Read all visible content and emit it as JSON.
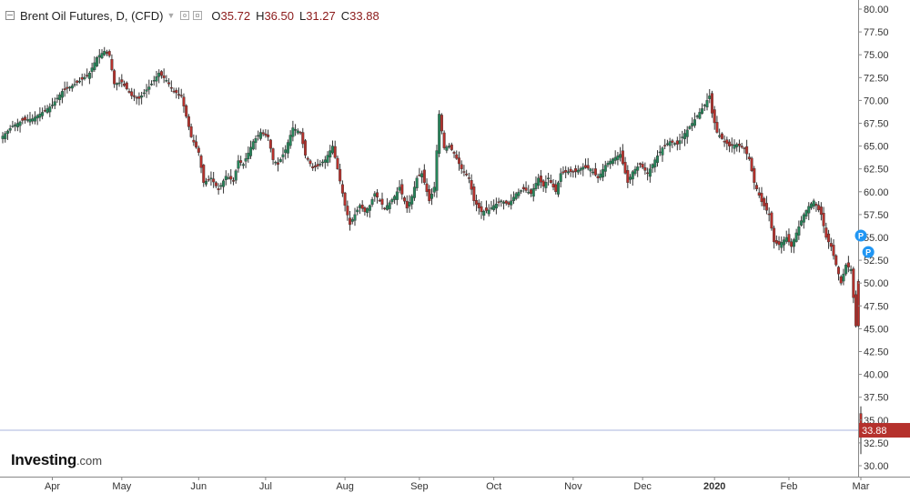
{
  "legend": {
    "title": "Brent Oil Futures, D, (CFD)",
    "open_label": "O",
    "open": "35.72",
    "high_label": "H",
    "high": "36.50",
    "low_label": "L",
    "low": "31.27",
    "close_label": "C",
    "close": "33.88"
  },
  "logo": {
    "main": "Investing",
    "sub": ".com"
  },
  "colors": {
    "up": "#26855a",
    "down": "#b5312c",
    "axis_text": "#333333",
    "last_price_line": "#aab4dc",
    "marker": "#2196f3"
  },
  "icons": {
    "collapse": "minus-square-icon",
    "caret": "caret-down-icon",
    "settings": "gear-icon",
    "close": "close-icon",
    "marker": "p-marker-icon"
  },
  "chart_data": {
    "type": "candlestick",
    "ylim": [
      29,
      81
    ],
    "y_ticks": [
      "30.00",
      "32.50",
      "35.00",
      "37.50",
      "40.00",
      "42.50",
      "45.00",
      "47.50",
      "50.00",
      "52.50",
      "55.00",
      "57.50",
      "60.00",
      "62.50",
      "65.00",
      "67.50",
      "70.00",
      "72.50",
      "75.00",
      "77.50",
      "80.00"
    ],
    "x_ticks": [
      {
        "label": "Apr",
        "day": 20
      },
      {
        "label": "May",
        "day": 48
      },
      {
        "label": "Jun",
        "day": 79
      },
      {
        "label": "Jul",
        "day": 106
      },
      {
        "label": "Aug",
        "day": 138
      },
      {
        "label": "Sep",
        "day": 168
      },
      {
        "label": "Oct",
        "day": 198
      },
      {
        "label": "Nov",
        "day": 230
      },
      {
        "label": "Dec",
        "day": 258
      },
      {
        "label": "2020",
        "day": 287
      },
      {
        "label": "Feb",
        "day": 317
      },
      {
        "label": "Mar",
        "day": 346
      }
    ],
    "last_price": 33.88,
    "last_price_label": "33.88",
    "markers": [
      {
        "label": "P",
        "day": 346,
        "price": 55.2
      },
      {
        "label": "P",
        "day": 349,
        "price": 53.4
      }
    ],
    "close_path": [
      [
        0,
        66.1
      ],
      [
        4,
        67.2
      ],
      [
        8,
        67.8
      ],
      [
        12,
        68.0
      ],
      [
        16,
        68.7
      ],
      [
        20,
        69.5
      ],
      [
        24,
        71.0
      ],
      [
        28,
        71.6
      ],
      [
        32,
        72.3
      ],
      [
        35,
        73.0
      ],
      [
        38,
        74.7
      ],
      [
        41,
        75.4
      ],
      [
        43,
        74.9
      ],
      [
        45,
        71.8
      ],
      [
        48,
        72.0
      ],
      [
        52,
        70.5
      ],
      [
        55,
        70.2
      ],
      [
        60,
        71.8
      ],
      [
        63,
        73.0
      ],
      [
        66,
        72.2
      ],
      [
        69,
        71.0
      ],
      [
        72,
        70.5
      ],
      [
        76,
        66.0
      ],
      [
        79,
        64.3
      ],
      [
        81,
        61.0
      ],
      [
        84,
        61.5
      ],
      [
        87,
        60.2
      ],
      [
        90,
        61.7
      ],
      [
        93,
        61.2
      ],
      [
        95,
        63.4
      ],
      [
        97,
        63.0
      ],
      [
        101,
        65.5
      ],
      [
        104,
        66.5
      ],
      [
        107,
        66.0
      ],
      [
        109,
        63.5
      ],
      [
        111,
        63.0
      ],
      [
        114,
        64.6
      ],
      [
        117,
        67.0
      ],
      [
        120,
        66.5
      ],
      [
        122,
        64.0
      ],
      [
        125,
        62.6
      ],
      [
        127,
        62.8
      ],
      [
        130,
        63.5
      ],
      [
        133,
        65.0
      ],
      [
        135,
        62.5
      ],
      [
        138,
        58.5
      ],
      [
        140,
        56.4
      ],
      [
        142,
        57.5
      ],
      [
        144,
        58.5
      ],
      [
        146,
        57.8
      ],
      [
        148,
        58.5
      ],
      [
        150,
        59.8
      ],
      [
        152,
        59.0
      ],
      [
        154,
        58.2
      ],
      [
        156,
        58.8
      ],
      [
        158,
        59.5
      ],
      [
        160,
        60.5
      ],
      [
        163,
        58.2
      ],
      [
        165,
        59.5
      ],
      [
        167,
        61.5
      ],
      [
        169,
        62.0
      ],
      [
        172,
        59.0
      ],
      [
        174,
        60.5
      ],
      [
        176,
        68.5
      ],
      [
        178,
        64.8
      ],
      [
        180,
        65.0
      ],
      [
        182,
        64.2
      ],
      [
        185,
        62.5
      ],
      [
        188,
        61.5
      ],
      [
        190,
        59.0
      ],
      [
        193,
        57.8
      ],
      [
        196,
        58.0
      ],
      [
        198,
        58.5
      ],
      [
        201,
        59.0
      ],
      [
        204,
        58.6
      ],
      [
        207,
        59.8
      ],
      [
        210,
        60.3
      ],
      [
        213,
        59.8
      ],
      [
        216,
        61.5
      ],
      [
        218,
        60.6
      ],
      [
        220,
        61.5
      ],
      [
        223,
        60.0
      ],
      [
        225,
        62.0
      ],
      [
        228,
        62.2
      ],
      [
        231,
        62.2
      ],
      [
        234,
        62.7
      ],
      [
        237,
        62.5
      ],
      [
        240,
        61.5
      ],
      [
        243,
        62.9
      ],
      [
        246,
        63.6
      ],
      [
        249,
        64.1
      ],
      [
        252,
        61.0
      ],
      [
        254,
        62.2
      ],
      [
        257,
        63.0
      ],
      [
        260,
        62.0
      ],
      [
        263,
        63.5
      ],
      [
        266,
        64.8
      ],
      [
        269,
        65.5
      ],
      [
        272,
        65.2
      ],
      [
        275,
        66.4
      ],
      [
        278,
        67.5
      ],
      [
        281,
        68.7
      ],
      [
        283,
        69.5
      ],
      [
        285,
        70.5
      ],
      [
        286,
        68.6
      ],
      [
        288,
        66.5
      ],
      [
        290,
        65.8
      ],
      [
        293,
        65.0
      ],
      [
        296,
        65.2
      ],
      [
        299,
        64.7
      ],
      [
        301,
        63.6
      ],
      [
        303,
        61.0
      ],
      [
        306,
        58.9
      ],
      [
        309,
        57.5
      ],
      [
        311,
        54.5
      ],
      [
        313,
        54.2
      ],
      [
        316,
        55.0
      ],
      [
        318,
        54.0
      ],
      [
        320,
        55.5
      ],
      [
        323,
        57.5
      ],
      [
        325,
        58.4
      ],
      [
        327,
        59.0
      ],
      [
        330,
        57.5
      ],
      [
        332,
        55.0
      ],
      [
        334,
        54.0
      ],
      [
        336,
        52.0
      ],
      [
        338,
        50.0
      ],
      [
        340,
        52.0
      ],
      [
        342,
        51.5
      ],
      [
        344,
        45.3
      ],
      [
        345,
        45.3
      ],
      [
        346,
        33.88
      ]
    ]
  }
}
